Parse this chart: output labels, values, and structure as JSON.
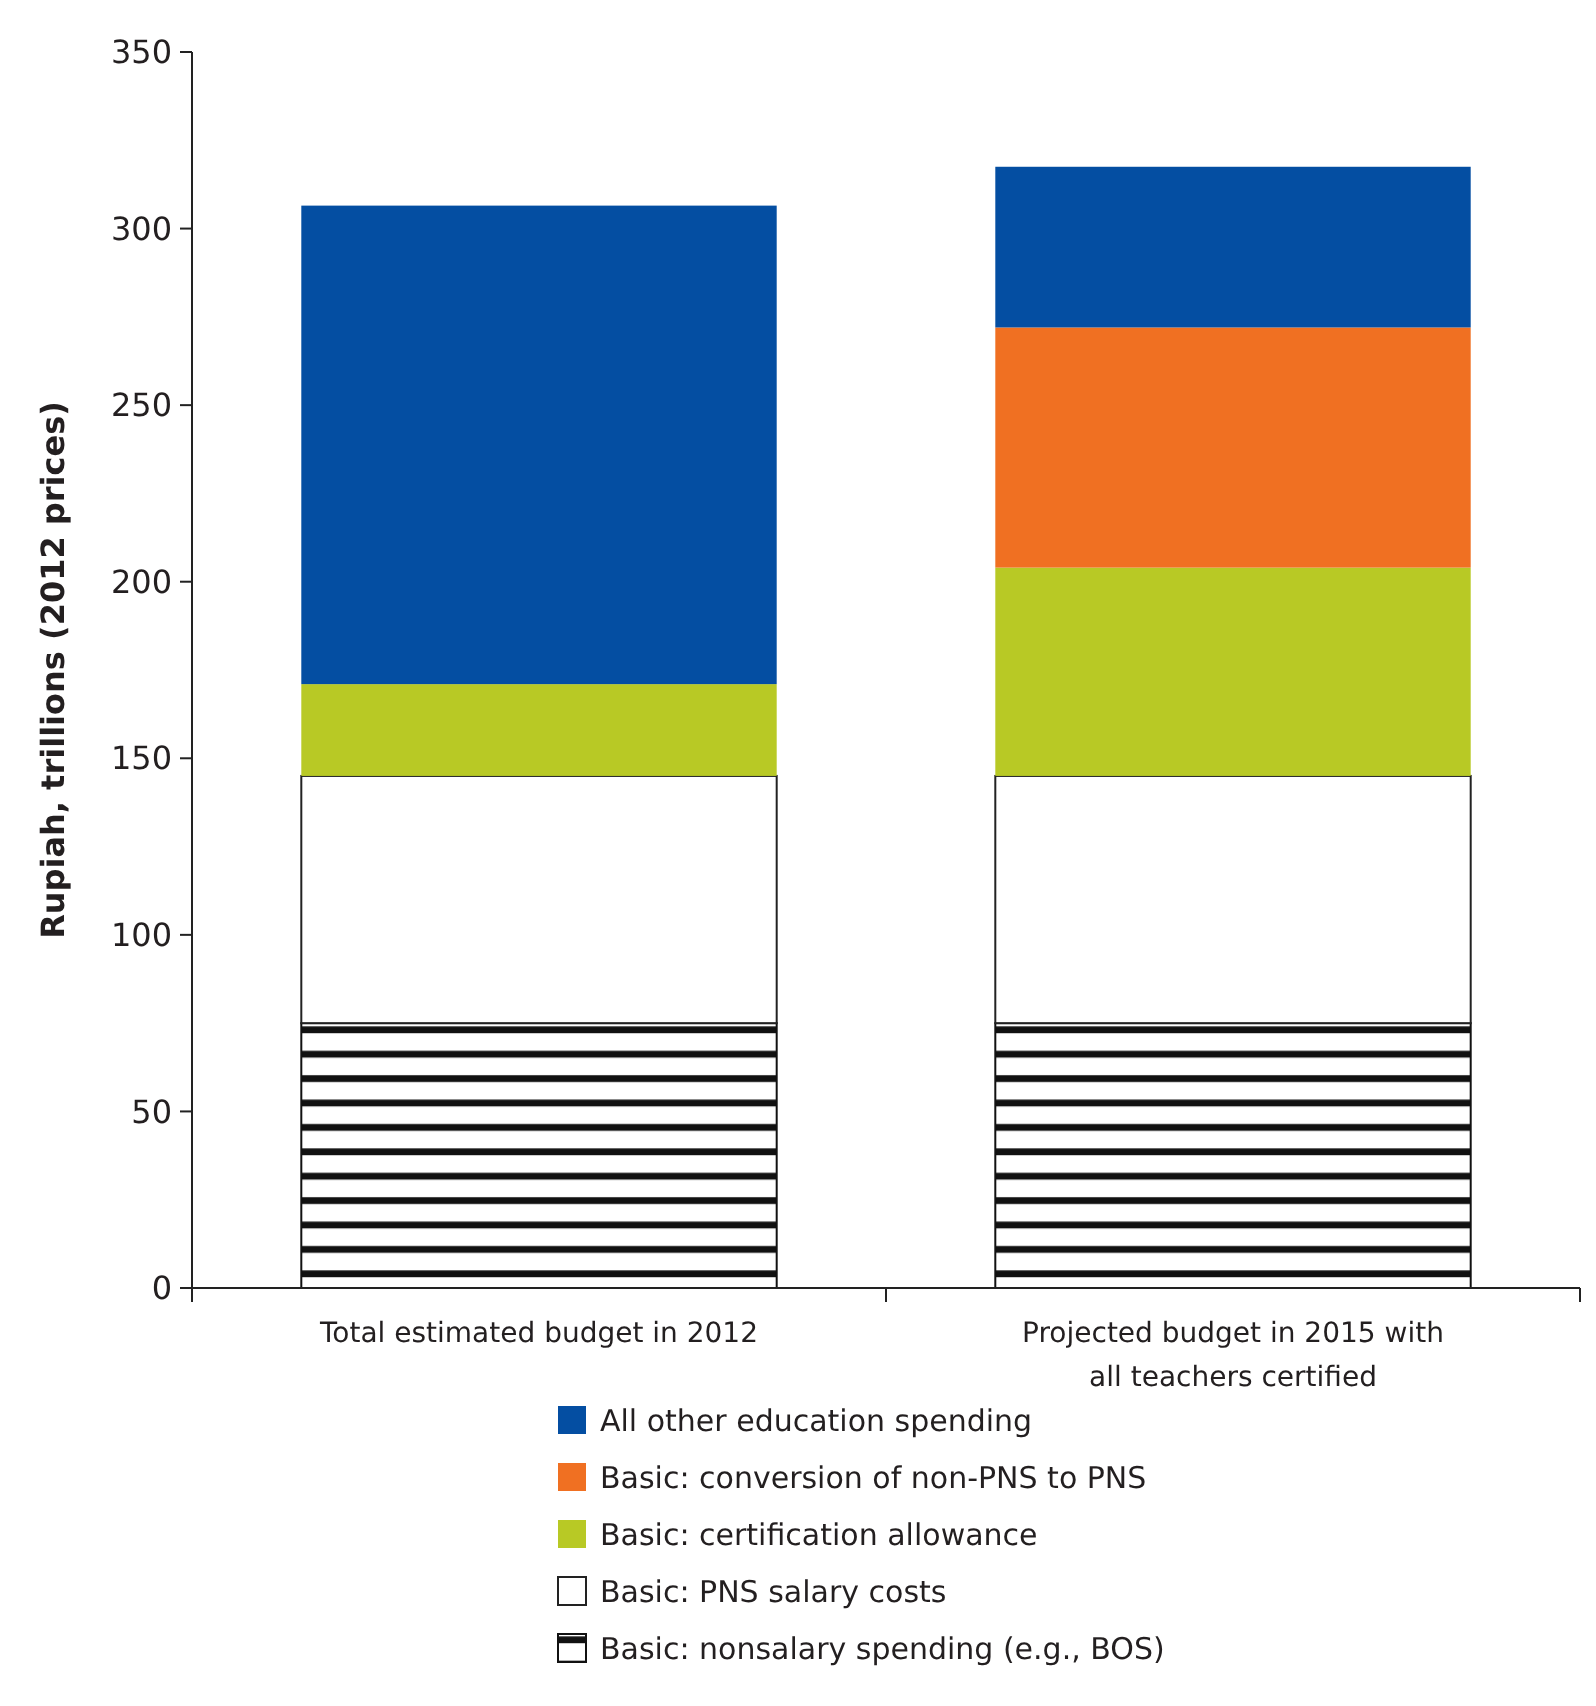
{
  "chart_data": {
    "type": "bar",
    "stacked": true,
    "ylabel": "Rupiah, trillions (2012 prices)",
    "categories": [
      "Total estimated budget in 2012",
      "Projected budget in 2015 with all teachers certified"
    ],
    "ylim": [
      0,
      350
    ],
    "yticks": [
      0,
      50,
      100,
      150,
      200,
      250,
      300,
      350
    ],
    "grid": false,
    "legend": "bottom",
    "series": [
      {
        "name": "Basic: nonsalary spending (e.g., BOS)",
        "color": "#111111",
        "values": [
          75,
          75
        ]
      },
      {
        "name": "Basic: PNS salary costs",
        "color": "#ffffff",
        "values": [
          70,
          70
        ]
      },
      {
        "name": "Basic: certification allowance",
        "color": "#b8c925",
        "values": [
          26,
          59
        ]
      },
      {
        "name": "Basic: conversion of non-PNS to PNS",
        "color": "#f07022",
        "values": [
          null,
          68
        ]
      },
      {
        "name": "All other education spending",
        "color": "#044ea2",
        "values": [
          135.5,
          45.5
        ]
      }
    ]
  }
}
